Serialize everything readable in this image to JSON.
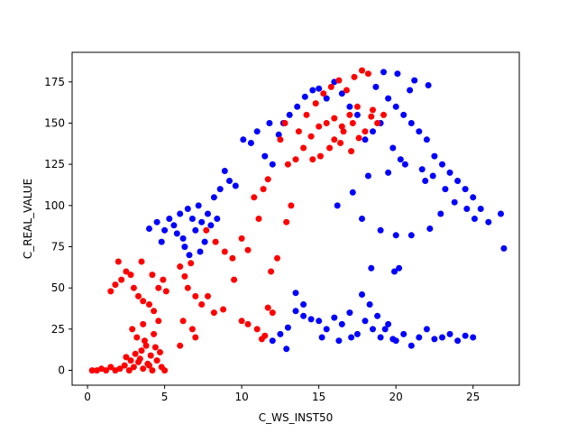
{
  "chart_data": {
    "type": "scatter",
    "title": "",
    "xlabel": "C_WS_INST50",
    "ylabel": "C_REAL_VALUE",
    "xlim": [
      -1.0,
      28.0
    ],
    "ylim": [
      -9,
      193
    ],
    "x_ticks": [
      0,
      5,
      10,
      15,
      20,
      25
    ],
    "y_ticks": [
      0,
      25,
      50,
      75,
      100,
      125,
      150,
      175
    ],
    "x_tick_labels": [
      "0",
      "5",
      "10",
      "15",
      "20",
      "25"
    ],
    "y_tick_labels": [
      "0",
      "25",
      "50",
      "75",
      "100",
      "125",
      "150",
      "175"
    ],
    "grid": false,
    "legend": "none",
    "series": [
      {
        "color": "#0000ff",
        "points": [
          [
            4.0,
            86
          ],
          [
            4.5,
            90
          ],
          [
            5.0,
            85
          ],
          [
            5.3,
            92
          ],
          [
            5.6,
            88
          ],
          [
            6.0,
            95
          ],
          [
            6.2,
            80
          ],
          [
            6.5,
            98
          ],
          [
            6.8,
            92
          ],
          [
            7.0,
            85
          ],
          [
            7.2,
            100
          ],
          [
            7.4,
            90
          ],
          [
            7.6,
            78
          ],
          [
            7.8,
            95
          ],
          [
            8.0,
            88
          ],
          [
            8.2,
            105
          ],
          [
            8.4,
            92
          ],
          [
            6.3,
            75
          ],
          [
            6.6,
            70
          ],
          [
            7.3,
            72
          ],
          [
            5.8,
            83
          ],
          [
            4.8,
            78
          ],
          [
            8.6,
            110
          ],
          [
            8.9,
            121
          ],
          [
            9.2,
            115
          ],
          [
            9.6,
            112
          ],
          [
            10.1,
            140
          ],
          [
            10.6,
            138
          ],
          [
            11.0,
            145
          ],
          [
            11.5,
            130
          ],
          [
            11.8,
            150
          ],
          [
            12.0,
            125
          ],
          [
            12.4,
            143
          ],
          [
            12.7,
            150
          ],
          [
            13.1,
            155
          ],
          [
            13.6,
            160
          ],
          [
            14.1,
            166
          ],
          [
            14.6,
            170
          ],
          [
            15.0,
            171
          ],
          [
            15.5,
            165
          ],
          [
            16.0,
            175
          ],
          [
            16.5,
            168
          ],
          [
            17.0,
            160
          ],
          [
            17.5,
            155
          ],
          [
            18.0,
            140
          ],
          [
            18.5,
            145
          ],
          [
            19.0,
            150
          ],
          [
            19.5,
            165
          ],
          [
            20.0,
            160
          ],
          [
            20.5,
            155
          ],
          [
            21.0,
            150
          ],
          [
            21.5,
            145
          ],
          [
            22.0,
            140
          ],
          [
            22.5,
            130
          ],
          [
            23.0,
            125
          ],
          [
            23.5,
            120
          ],
          [
            24.0,
            115
          ],
          [
            24.5,
            110
          ],
          [
            25.0,
            105
          ],
          [
            25.5,
            98
          ],
          [
            26.0,
            90
          ],
          [
            26.8,
            95
          ],
          [
            27.0,
            74
          ],
          [
            19.2,
            181
          ],
          [
            20.1,
            180
          ],
          [
            21.2,
            176
          ],
          [
            22.1,
            173
          ],
          [
            20.9,
            170
          ],
          [
            18.7,
            172
          ],
          [
            19.8,
            135
          ],
          [
            20.3,
            128
          ],
          [
            21.7,
            122
          ],
          [
            22.4,
            118
          ],
          [
            23.2,
            110
          ],
          [
            23.8,
            102
          ],
          [
            24.6,
            98
          ],
          [
            25.1,
            92
          ],
          [
            22.9,
            95
          ],
          [
            21.9,
            115
          ],
          [
            20.6,
            125
          ],
          [
            19.5,
            120
          ],
          [
            18.2,
            118
          ],
          [
            17.2,
            108
          ],
          [
            16.2,
            100
          ],
          [
            17.8,
            92
          ],
          [
            19.0,
            85
          ],
          [
            19.9,
            60
          ],
          [
            20.2,
            62
          ],
          [
            18.4,
            62
          ],
          [
            20.0,
            82
          ],
          [
            21.0,
            82
          ],
          [
            22.2,
            86
          ],
          [
            13.5,
            47
          ],
          [
            14.0,
            40
          ],
          [
            15.0,
            30
          ],
          [
            15.5,
            25
          ],
          [
            16.0,
            32
          ],
          [
            16.5,
            28
          ],
          [
            17.0,
            35
          ],
          [
            17.5,
            22
          ],
          [
            18.0,
            30
          ],
          [
            18.5,
            25
          ],
          [
            19.0,
            20
          ],
          [
            19.5,
            28
          ],
          [
            20.0,
            18
          ],
          [
            20.5,
            22
          ],
          [
            21.0,
            15
          ],
          [
            21.5,
            20
          ],
          [
            22.0,
            25
          ],
          [
            22.5,
            19
          ],
          [
            23.0,
            20
          ],
          [
            23.5,
            22
          ],
          [
            24.0,
            18
          ],
          [
            24.5,
            21
          ],
          [
            25.0,
            20
          ],
          [
            12.0,
            18
          ],
          [
            12.5,
            22
          ],
          [
            13.0,
            26
          ],
          [
            13.5,
            36
          ],
          [
            14.0,
            33
          ],
          [
            14.5,
            31
          ],
          [
            15.2,
            20
          ],
          [
            16.3,
            18
          ],
          [
            17.1,
            20
          ],
          [
            17.8,
            46
          ],
          [
            18.3,
            40
          ],
          [
            18.8,
            33
          ],
          [
            19.3,
            25
          ],
          [
            19.8,
            19
          ],
          [
            12.9,
            13
          ]
        ]
      },
      {
        "color": "#ff0000",
        "points": [
          [
            0.3,
            0
          ],
          [
            0.6,
            0
          ],
          [
            0.9,
            1
          ],
          [
            1.2,
            0
          ],
          [
            1.5,
            2
          ],
          [
            1.8,
            0
          ],
          [
            2.1,
            1
          ],
          [
            2.4,
            3
          ],
          [
            2.7,
            0
          ],
          [
            3.0,
            2
          ],
          [
            3.3,
            5
          ],
          [
            3.6,
            1
          ],
          [
            3.9,
            4
          ],
          [
            4.2,
            0
          ],
          [
            4.5,
            6
          ],
          [
            4.8,
            2
          ],
          [
            5.0,
            0
          ],
          [
            2.5,
            8
          ],
          [
            3.1,
            10
          ],
          [
            3.5,
            12
          ],
          [
            3.8,
            15
          ],
          [
            4.1,
            9
          ],
          [
            4.4,
            14
          ],
          [
            4.7,
            11
          ],
          [
            2.8,
            6
          ],
          [
            3.4,
            7
          ],
          [
            4.0,
            3
          ],
          [
            3.2,
            20
          ],
          [
            3.7,
            18
          ],
          [
            4.3,
            22
          ],
          [
            2.9,
            25
          ],
          [
            3.6,
            28
          ],
          [
            4.6,
            30
          ],
          [
            1.5,
            48
          ],
          [
            1.8,
            52
          ],
          [
            2.2,
            55
          ],
          [
            2.5,
            60
          ],
          [
            2.8,
            58
          ],
          [
            3.0,
            50
          ],
          [
            3.3,
            45
          ],
          [
            3.6,
            42
          ],
          [
            4.0,
            40
          ],
          [
            4.3,
            36
          ],
          [
            4.6,
            50
          ],
          [
            4.9,
            55
          ],
          [
            5.1,
            48
          ],
          [
            2.0,
            66
          ],
          [
            3.5,
            66
          ],
          [
            4.2,
            58
          ],
          [
            6.0,
            63
          ],
          [
            6.3,
            57
          ],
          [
            6.7,
            65
          ],
          [
            6.5,
            50
          ],
          [
            7.0,
            45
          ],
          [
            7.4,
            40
          ],
          [
            7.8,
            45
          ],
          [
            8.2,
            35
          ],
          [
            8.8,
            37
          ],
          [
            6.2,
            30
          ],
          [
            6.8,
            25
          ],
          [
            6.0,
            15
          ],
          [
            7.0,
            20
          ],
          [
            9.5,
            55
          ],
          [
            10.0,
            30
          ],
          [
            10.4,
            28
          ],
          [
            11.0,
            25
          ],
          [
            11.5,
            21
          ],
          [
            11.3,
            19
          ],
          [
            12.0,
            35
          ],
          [
            11.7,
            38
          ],
          [
            7.7,
            85
          ],
          [
            8.3,
            78
          ],
          [
            8.9,
            72
          ],
          [
            9.4,
            68
          ],
          [
            10.0,
            80
          ],
          [
            10.4,
            73
          ],
          [
            10.8,
            105
          ],
          [
            11.4,
            110
          ],
          [
            11.7,
            116
          ],
          [
            11.1,
            92
          ],
          [
            11.9,
            60
          ],
          [
            12.3,
            68
          ],
          [
            12.9,
            90
          ],
          [
            13.2,
            100
          ],
          [
            13.0,
            125
          ],
          [
            13.5,
            128
          ],
          [
            14.0,
            135
          ],
          [
            14.5,
            142
          ],
          [
            15.0,
            148
          ],
          [
            15.5,
            150
          ],
          [
            16.0,
            153
          ],
          [
            16.5,
            148
          ],
          [
            17.0,
            155
          ],
          [
            17.5,
            160
          ],
          [
            18.0,
            145
          ],
          [
            18.5,
            158
          ],
          [
            14.2,
            155
          ],
          [
            14.8,
            162
          ],
          [
            15.3,
            168
          ],
          [
            15.8,
            172
          ],
          [
            16.3,
            176
          ],
          [
            16.8,
            170
          ],
          [
            17.3,
            178
          ],
          [
            17.8,
            182
          ],
          [
            18.2,
            180
          ],
          [
            15.1,
            130
          ],
          [
            15.7,
            135
          ],
          [
            16.4,
            138
          ],
          [
            17.1,
            133
          ],
          [
            13.7,
            145
          ],
          [
            12.5,
            140
          ],
          [
            12.8,
            150
          ],
          [
            16.0,
            140
          ],
          [
            16.6,
            145
          ],
          [
            17.2,
            150
          ],
          [
            17.6,
            141
          ],
          [
            18.4,
            154
          ],
          [
            18.8,
            150
          ],
          [
            19.2,
            155
          ],
          [
            14.6,
            128
          ]
        ]
      }
    ]
  }
}
